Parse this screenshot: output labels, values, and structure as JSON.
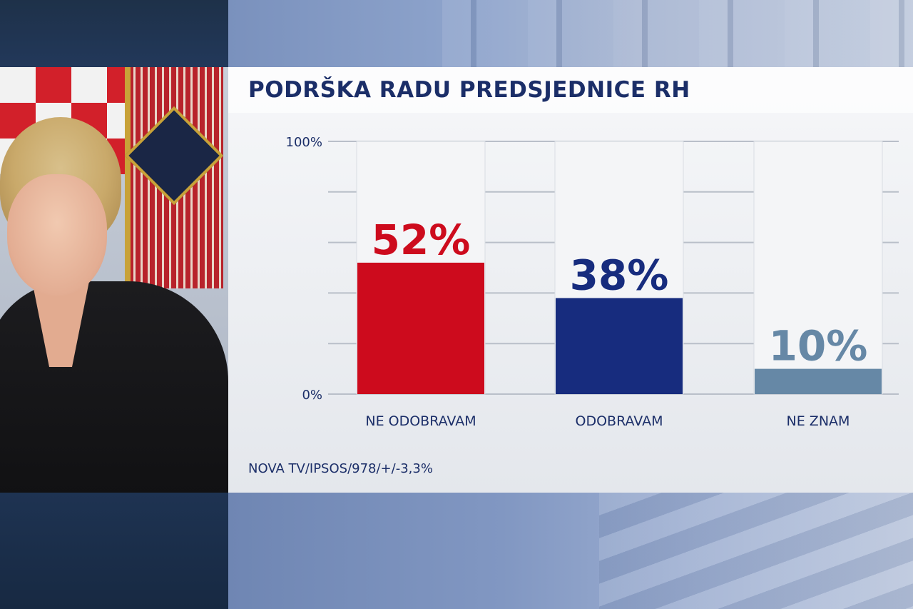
{
  "chart_data": {
    "type": "bar",
    "title": "PODRŠKA RADU PREDSJEDNICE RH",
    "categories": [
      "NE ODOBRAVAM",
      "ODOBRAVAM",
      "NE ZNAM"
    ],
    "values": [
      52,
      38,
      10
    ],
    "value_labels": [
      "52%",
      "38%",
      "10%"
    ],
    "colors": [
      "#cd0b1d",
      "#172c7e",
      "#6688a6"
    ],
    "ylim": [
      0,
      100
    ],
    "ytick_labels": [
      "0%",
      "100%"
    ],
    "grid": true,
    "source": "NOVA TV/IPSOS/978/+/-3,3%"
  }
}
